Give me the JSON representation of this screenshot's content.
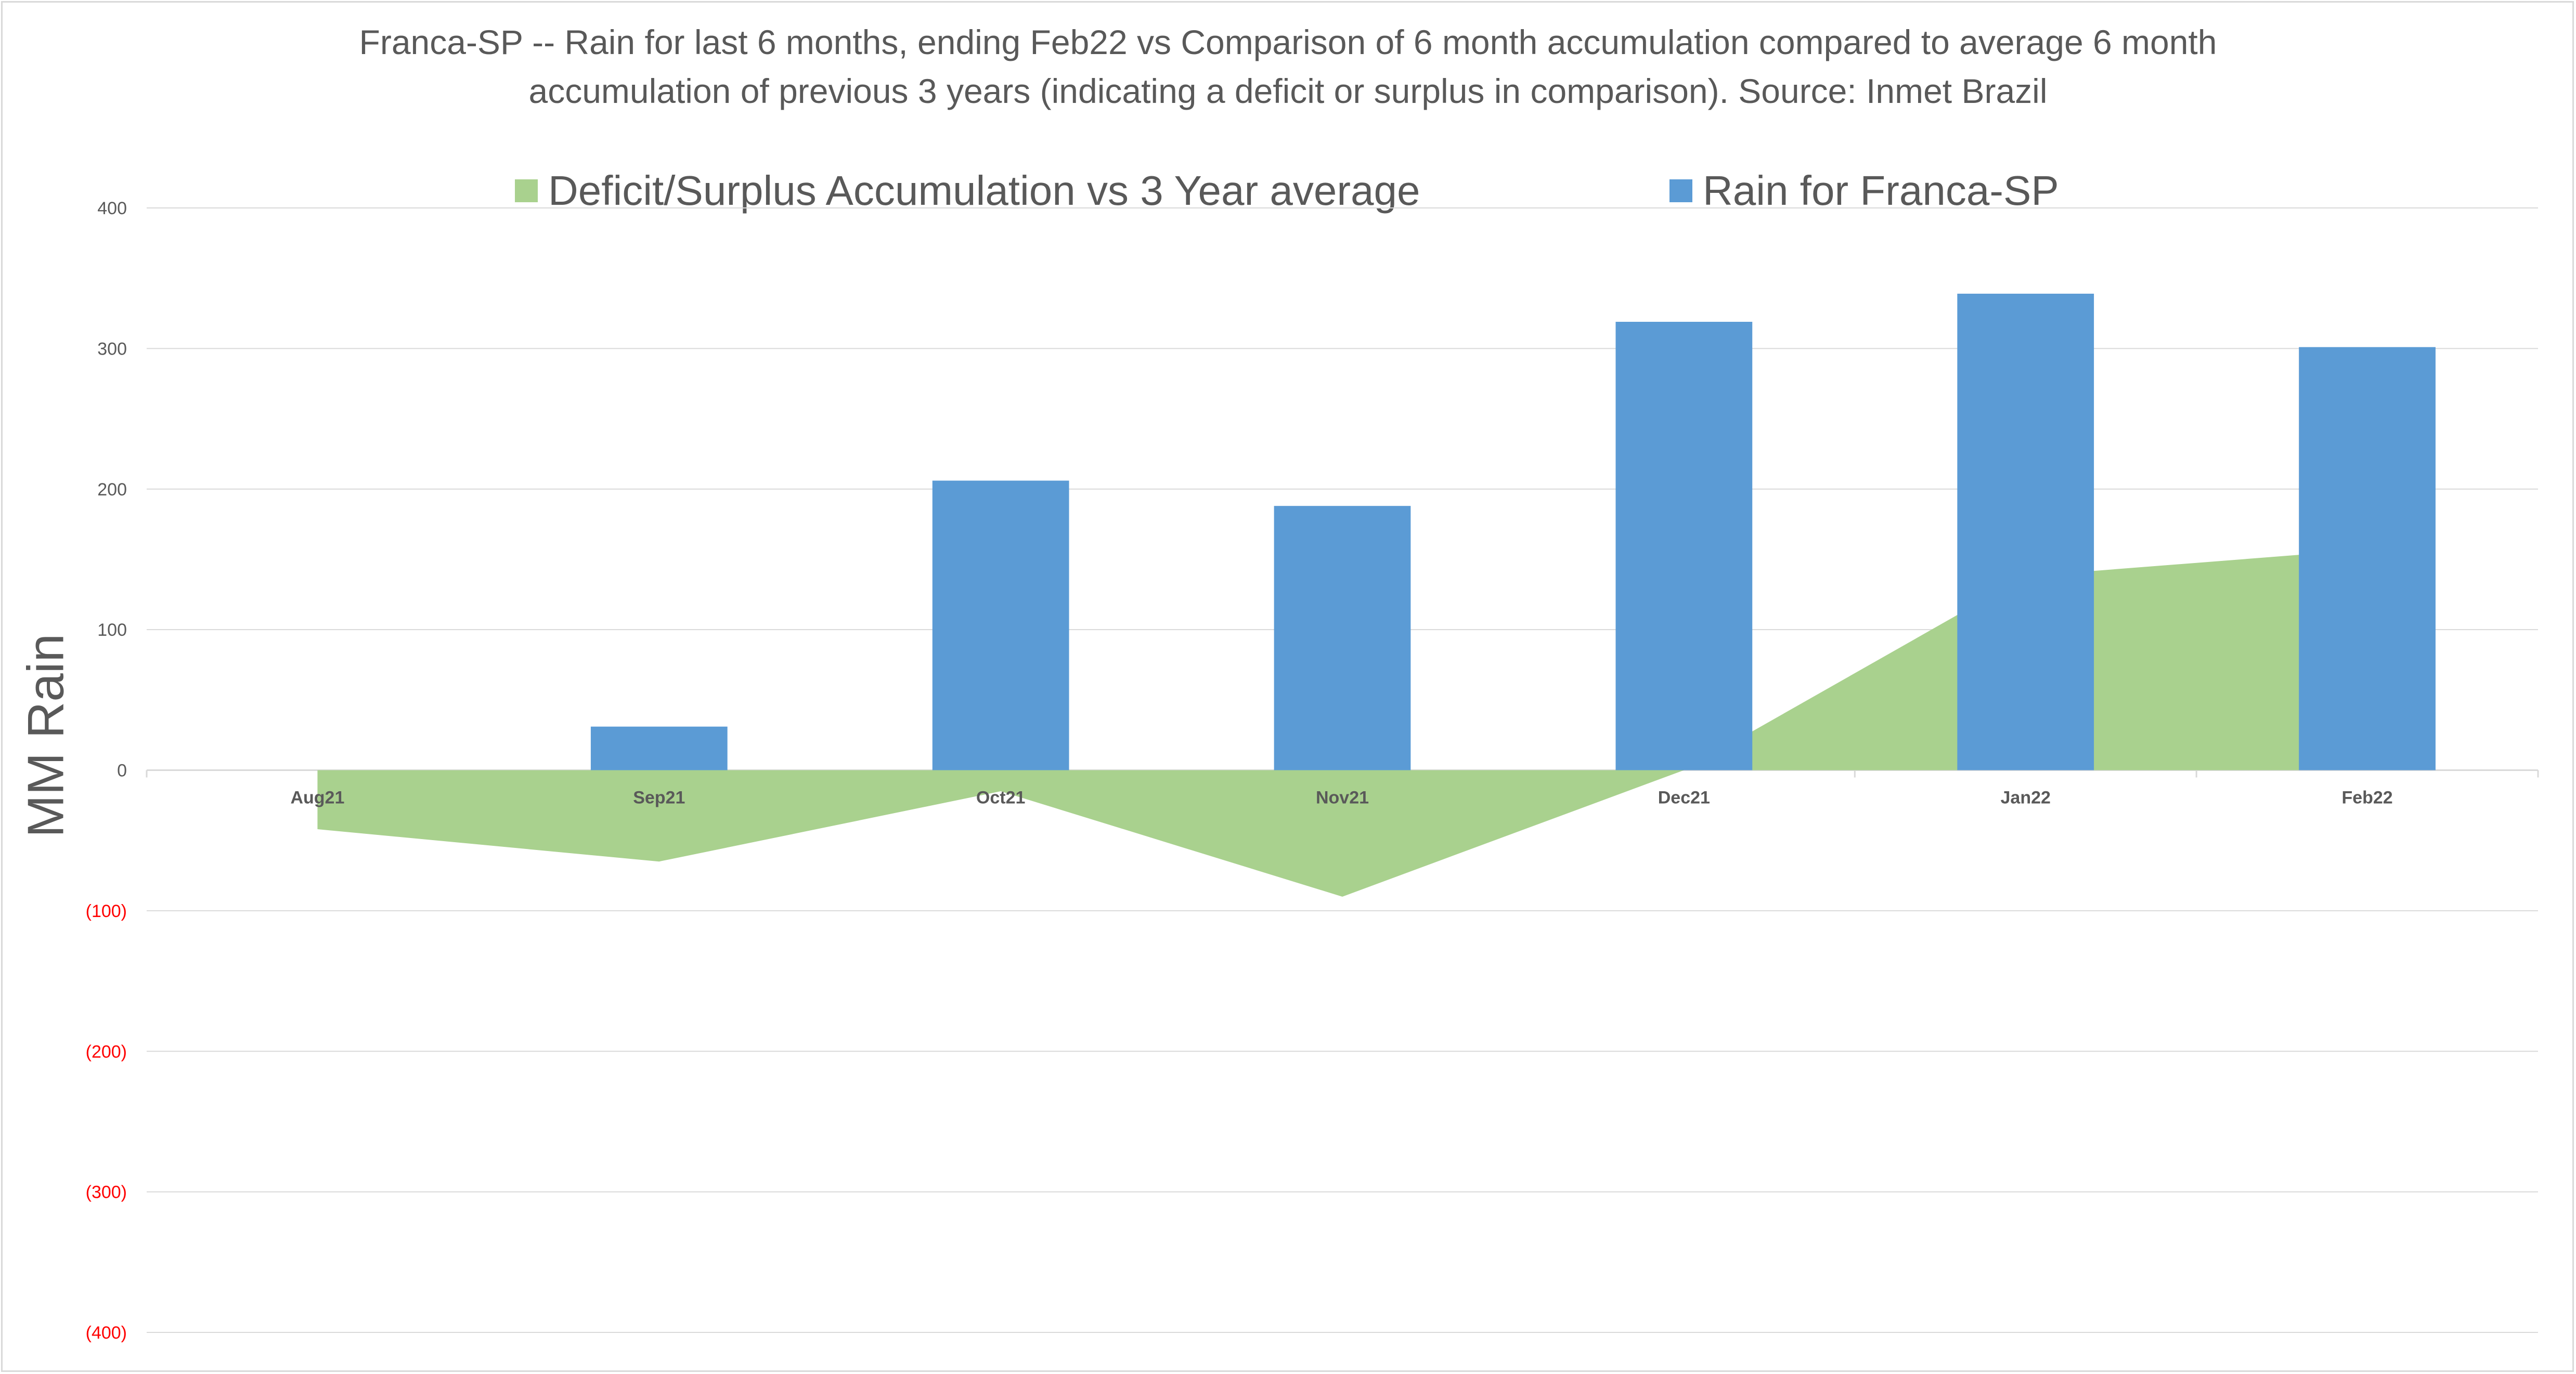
{
  "chart_data": {
    "type": "bar",
    "title": "Franca-SP -- Rain for last 6 months, ending Feb22  vs Comparison of 6 month accumulation compared to average 6 month",
    "subtitle": "accumulation of previous 3 years  (indicating a deficit or surplus in comparison). Source: Inmet Brazil",
    "xlabel": "",
    "ylabel": "MM Rain",
    "ylim": [
      -400,
      400
    ],
    "y_ticks": [
      {
        "value": 400,
        "label": "400"
      },
      {
        "value": 300,
        "label": "300"
      },
      {
        "value": 200,
        "label": "200"
      },
      {
        "value": 100,
        "label": "100"
      },
      {
        "value": 0,
        "label": "0"
      },
      {
        "value": -100,
        "label": "(100)"
      },
      {
        "value": -200,
        "label": "(200)"
      },
      {
        "value": -300,
        "label": "(300)"
      },
      {
        "value": -400,
        "label": "(400)"
      }
    ],
    "categories": [
      "Aug21",
      "Sep21",
      "Oct21",
      "Nov21",
      "Dec21",
      "Jan22",
      "Feb22"
    ],
    "grid": true,
    "legend_position": "top",
    "series": [
      {
        "name": "Deficit/Surplus Accumulation vs 3 Year average",
        "type": "area",
        "color": "#a9d18e",
        "values": [
          -42,
          -65,
          -15,
          -90,
          0,
          138,
          157
        ]
      },
      {
        "name": "Rain for Franca-SP",
        "type": "bar",
        "color": "#5b9bd5",
        "values": [
          0,
          31,
          206,
          188,
          319,
          339,
          301
        ]
      }
    ],
    "colors": {
      "axis_text": "#595959",
      "negative_tick": "#ff0000",
      "gridline": "#d9d9d9"
    }
  }
}
